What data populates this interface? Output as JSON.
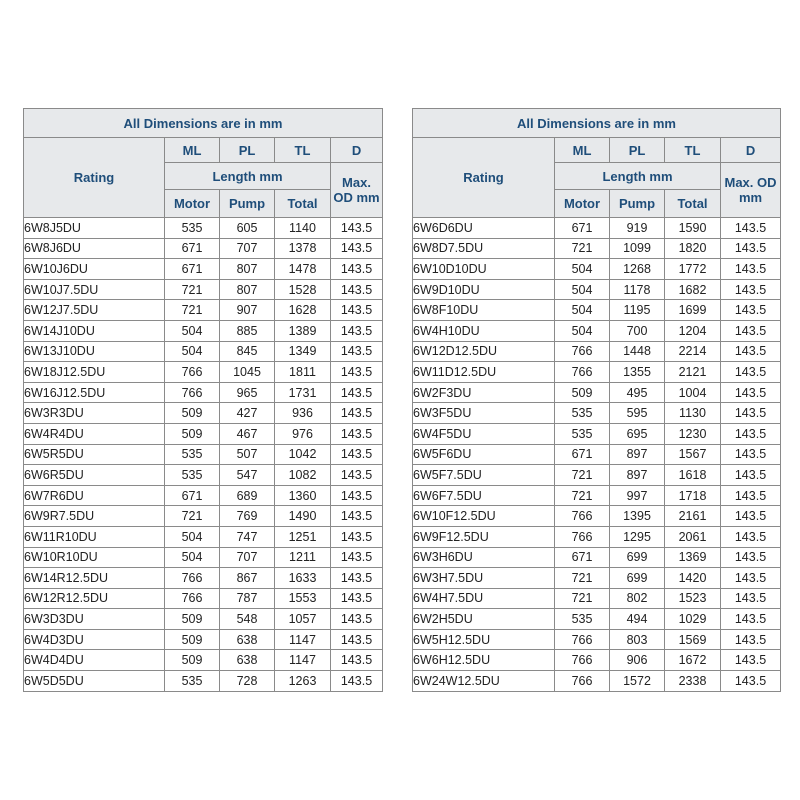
{
  "header": {
    "title": "All Dimensions are in mm",
    "rating": "Rating",
    "ml": "ML",
    "pl": "PL",
    "tl": "TL",
    "d": "D",
    "length": "Length mm",
    "max_od": "Max. OD mm",
    "motor": "Motor",
    "pump": "Pump",
    "total": "Total"
  },
  "tables": [
    {
      "rows": [
        [
          "6W8J5DU",
          "535",
          "605",
          "1140",
          "143.5"
        ],
        [
          "6W8J6DU",
          "671",
          "707",
          "1378",
          "143.5"
        ],
        [
          "6W10J6DU",
          "671",
          "807",
          "1478",
          "143.5"
        ],
        [
          "6W10J7.5DU",
          "721",
          "807",
          "1528",
          "143.5"
        ],
        [
          "6W12J7.5DU",
          "721",
          "907",
          "1628",
          "143.5"
        ],
        [
          "6W14J10DU",
          "504",
          "885",
          "1389",
          "143.5"
        ],
        [
          "6W13J10DU",
          "504",
          "845",
          "1349",
          "143.5"
        ],
        [
          "6W18J12.5DU",
          "766",
          "1045",
          "1811",
          "143.5"
        ],
        [
          "6W16J12.5DU",
          "766",
          "965",
          "1731",
          "143.5"
        ],
        [
          "6W3R3DU",
          "509",
          "427",
          "936",
          "143.5"
        ],
        [
          "6W4R4DU",
          "509",
          "467",
          "976",
          "143.5"
        ],
        [
          "6W5R5DU",
          "535",
          "507",
          "1042",
          "143.5"
        ],
        [
          "6W6R5DU",
          "535",
          "547",
          "1082",
          "143.5"
        ],
        [
          "6W7R6DU",
          "671",
          "689",
          "1360",
          "143.5"
        ],
        [
          "6W9R7.5DU",
          "721",
          "769",
          "1490",
          "143.5"
        ],
        [
          "6W11R10DU",
          "504",
          "747",
          "1251",
          "143.5"
        ],
        [
          "6W10R10DU",
          "504",
          "707",
          "1211",
          "143.5"
        ],
        [
          "6W14R12.5DU",
          "766",
          "867",
          "1633",
          "143.5"
        ],
        [
          "6W12R12.5DU",
          "766",
          "787",
          "1553",
          "143.5"
        ],
        [
          "6W3D3DU",
          "509",
          "548",
          "1057",
          "143.5"
        ],
        [
          "6W4D3DU",
          "509",
          "638",
          "1147",
          "143.5"
        ],
        [
          "6W4D4DU",
          "509",
          "638",
          "1147",
          "143.5"
        ],
        [
          "6W5D5DU",
          "535",
          "728",
          "1263",
          "143.5"
        ]
      ]
    },
    {
      "rows": [
        [
          "6W6D6DU",
          "671",
          "919",
          "1590",
          "143.5"
        ],
        [
          "6W8D7.5DU",
          "721",
          "1099",
          "1820",
          "143.5"
        ],
        [
          "6W10D10DU",
          "504",
          "1268",
          "1772",
          "143.5"
        ],
        [
          "6W9D10DU",
          "504",
          "1178",
          "1682",
          "143.5"
        ],
        [
          "6W8F10DU",
          "504",
          "1195",
          "1699",
          "143.5"
        ],
        [
          "6W4H10DU",
          "504",
          "700",
          "1204",
          "143.5"
        ],
        [
          "6W12D12.5DU",
          "766",
          "1448",
          "2214",
          "143.5"
        ],
        [
          "6W11D12.5DU",
          "766",
          "1355",
          "2121",
          "143.5"
        ],
        [
          "6W2F3DU",
          "509",
          "495",
          "1004",
          "143.5"
        ],
        [
          "6W3F5DU",
          "535",
          "595",
          "1130",
          "143.5"
        ],
        [
          "6W4F5DU",
          "535",
          "695",
          "1230",
          "143.5"
        ],
        [
          "6W5F6DU",
          "671",
          "897",
          "1567",
          "143.5"
        ],
        [
          "6W5F7.5DU",
          "721",
          "897",
          "1618",
          "143.5"
        ],
        [
          "6W6F7.5DU",
          "721",
          "997",
          "1718",
          "143.5"
        ],
        [
          "6W10F12.5DU",
          "766",
          "1395",
          "2161",
          "143.5"
        ],
        [
          "6W9F12.5DU",
          "766",
          "1295",
          "2061",
          "143.5"
        ],
        [
          "6W3H6DU",
          "671",
          "699",
          "1369",
          "143.5"
        ],
        [
          "6W3H7.5DU",
          "721",
          "699",
          "1420",
          "143.5"
        ],
        [
          "6W4H7.5DU",
          "721",
          "802",
          "1523",
          "143.5"
        ],
        [
          "6W2H5DU",
          "535",
          "494",
          "1029",
          "143.5"
        ],
        [
          "6W5H12.5DU",
          "766",
          "803",
          "1569",
          "143.5"
        ],
        [
          "6W6H12.5DU",
          "766",
          "906",
          "1672",
          "143.5"
        ],
        [
          "6W24W12.5DU",
          "766",
          "1572",
          "2338",
          "143.5"
        ]
      ]
    }
  ]
}
